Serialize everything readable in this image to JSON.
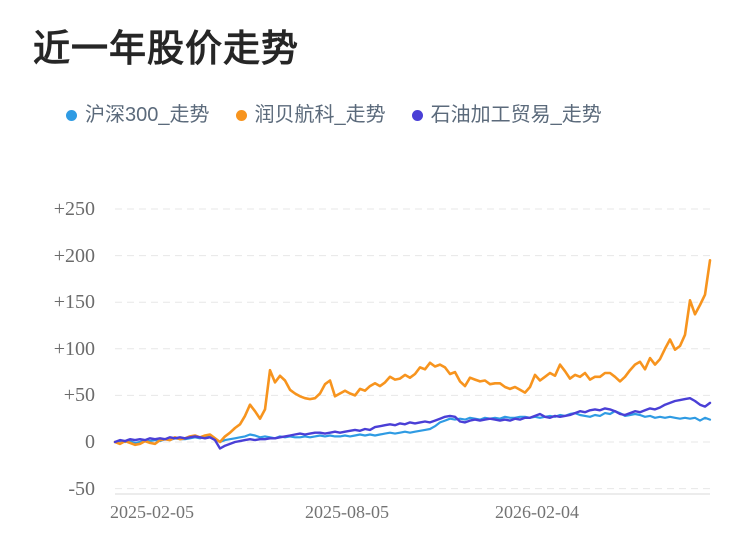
{
  "header": {
    "title": "近一年股价走势"
  },
  "legend": {
    "items": [
      {
        "label": "沪深300_走势",
        "color": "#2f9be3"
      },
      {
        "label": "润贝航科_走势",
        "color": "#f7941e"
      },
      {
        "label": "石油加工贸易_走势",
        "color": "#4a3fd6"
      }
    ]
  },
  "chart_data": {
    "type": "line",
    "title": "近一年股价走势",
    "grid": true,
    "legend_position": "top",
    "x_axis": {
      "tick_labels": [
        "2025-02-05",
        "2025-08-05",
        "2026-02-04"
      ]
    },
    "y_axis": {
      "tick_labels": [
        "+250",
        "+200",
        "+150",
        "+100",
        "+50",
        "0",
        "-50"
      ],
      "tick_values": [
        250,
        200,
        150,
        100,
        50,
        0,
        -50
      ],
      "ylim": [
        -50,
        250
      ]
    },
    "series": [
      {
        "name": "沪深300_走势",
        "color": "#2f9be3",
        "values": [
          0,
          1,
          0,
          1,
          -1,
          0,
          2,
          1,
          2,
          1,
          3,
          2,
          4,
          3,
          3,
          4,
          5,
          4,
          6,
          5,
          3,
          0,
          2,
          3,
          4,
          5,
          6,
          8,
          7,
          5,
          6,
          5,
          4,
          6,
          5,
          6,
          5,
          5,
          6,
          5,
          6,
          7,
          6,
          7,
          6,
          6,
          7,
          6,
          7,
          8,
          7,
          8,
          7,
          8,
          9,
          10,
          9,
          10,
          11,
          10,
          11,
          12,
          13,
          14,
          17,
          21,
          23,
          25,
          24,
          25,
          24,
          26,
          25,
          24,
          26,
          25,
          26,
          25,
          27,
          26,
          26,
          27,
          27,
          26,
          27,
          26,
          27,
          28,
          27,
          29,
          28,
          30,
          31,
          29,
          28,
          27,
          29,
          28,
          31,
          30,
          33,
          31,
          28,
          29,
          30,
          29,
          27,
          28,
          26,
          27,
          26,
          27,
          26,
          25,
          26,
          25,
          26,
          23,
          26,
          24
        ]
      },
      {
        "name": "润贝航科_走势",
        "color": "#f7941e",
        "values": [
          0,
          -2,
          1,
          -1,
          -3,
          -2,
          1,
          -1,
          -2,
          2,
          3,
          2,
          5,
          3,
          4,
          6,
          7,
          5,
          7,
          8,
          4,
          0,
          6,
          10,
          15,
          19,
          28,
          40,
          33,
          25,
          35,
          77,
          64,
          71,
          66,
          56,
          52,
          49,
          47,
          46,
          47,
          52,
          62,
          66,
          49,
          52,
          55,
          52,
          50,
          57,
          55,
          60,
          63,
          60,
          64,
          70,
          67,
          68,
          72,
          69,
          73,
          80,
          78,
          85,
          81,
          83,
          80,
          73,
          75,
          65,
          60,
          69,
          67,
          65,
          66,
          62,
          63,
          63,
          59,
          57,
          59,
          56,
          53,
          59,
          72,
          66,
          70,
          74,
          71,
          83,
          76,
          68,
          72,
          70,
          74,
          67,
          70,
          70,
          74,
          74,
          70,
          65,
          70,
          77,
          83,
          86,
          78,
          90,
          83,
          89,
          100,
          110,
          99,
          103,
          115,
          152,
          137,
          147,
          158,
          195
        ]
      },
      {
        "name": "石油加工贸易_走势",
        "color": "#4a3fd6",
        "values": [
          0,
          2,
          1,
          3,
          2,
          3,
          2,
          4,
          3,
          4,
          3,
          5,
          4,
          5,
          4,
          5,
          6,
          5,
          4,
          5,
          2,
          -7,
          -4,
          -2,
          0,
          1,
          2,
          3,
          2,
          3,
          3,
          4,
          4,
          5,
          6,
          7,
          8,
          9,
          8,
          9,
          10,
          10,
          9,
          10,
          11,
          10,
          11,
          12,
          13,
          12,
          14,
          13,
          16,
          17,
          18,
          19,
          18,
          20,
          19,
          21,
          20,
          21,
          22,
          21,
          23,
          25,
          27,
          28,
          27,
          22,
          21,
          23,
          24,
          23,
          24,
          25,
          24,
          23,
          24,
          23,
          25,
          24,
          26,
          26,
          28,
          30,
          27,
          26,
          28,
          27,
          28,
          29,
          31,
          33,
          32,
          34,
          35,
          34,
          36,
          35,
          33,
          30,
          29,
          31,
          33,
          32,
          34,
          36,
          35,
          37,
          40,
          42,
          44,
          45,
          46,
          47,
          44,
          40,
          38,
          42
        ]
      }
    ]
  }
}
